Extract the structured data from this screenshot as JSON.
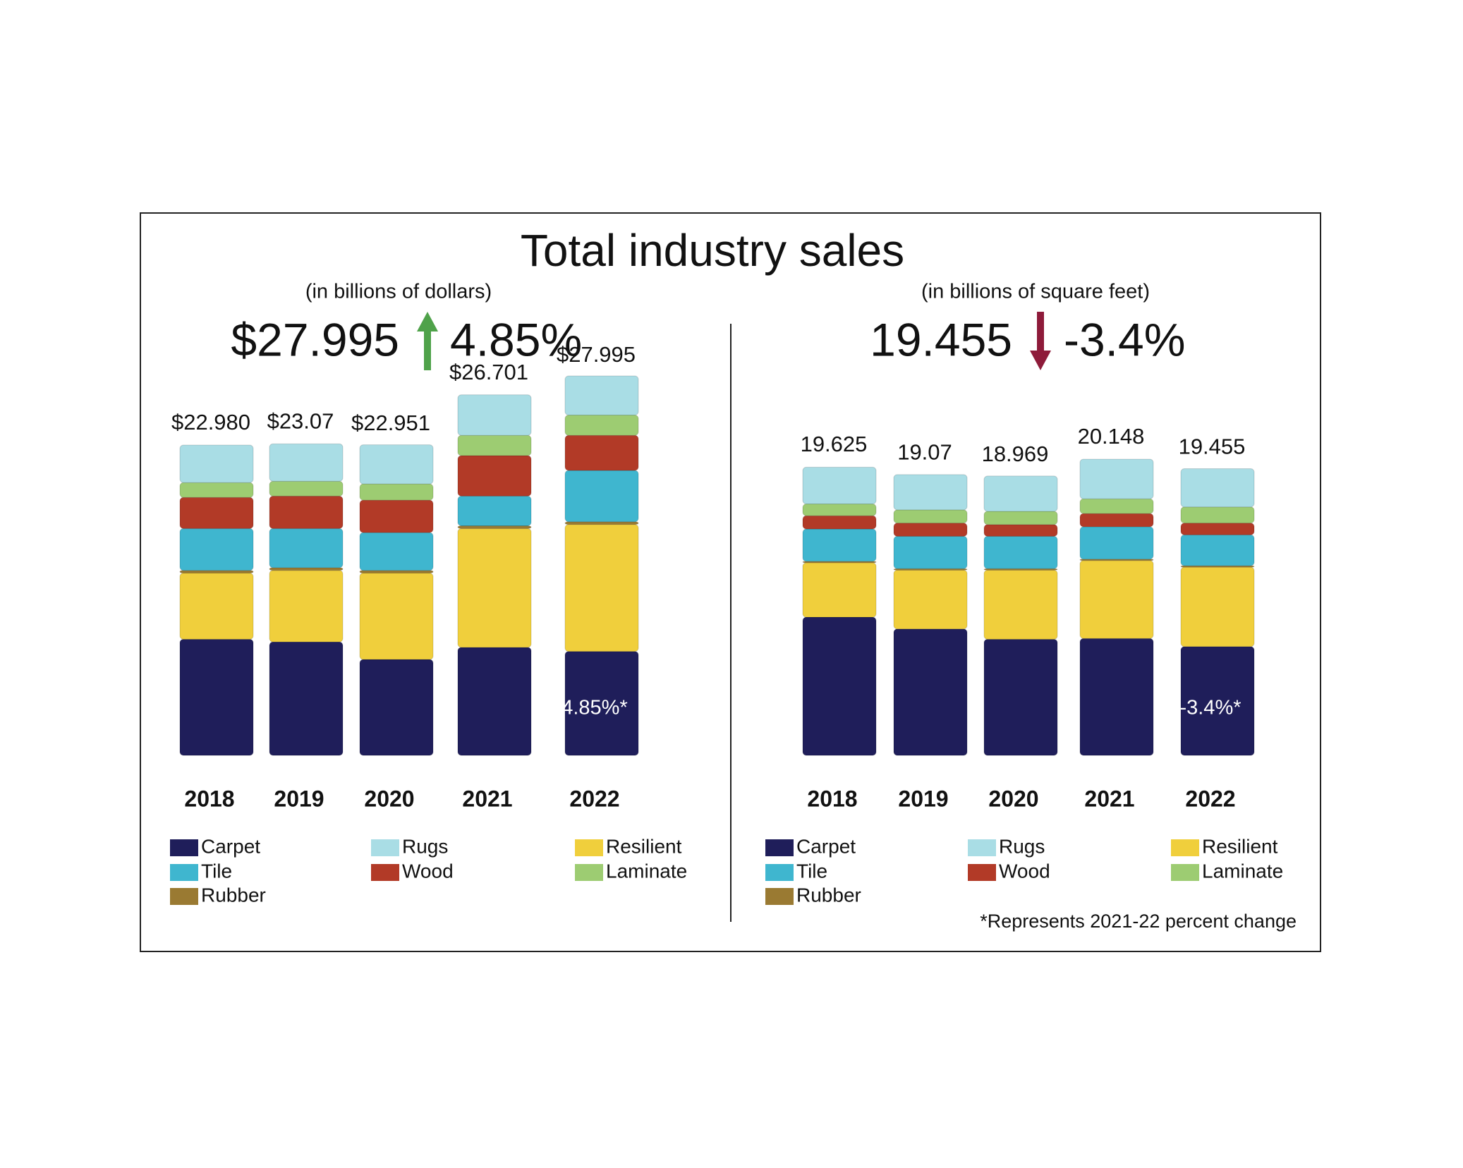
{
  "title": "Total industry sales",
  "footnote": "*Represents 2021-22 percent change",
  "chart_data": [
    {
      "type": "bar",
      "stacked": true,
      "subtitle": "(in billions of dollars)",
      "headline": "$27.995",
      "trend": "up",
      "change": "4.85%",
      "annotation": "4.85%*",
      "categories": [
        "2018",
        "2019",
        "2020",
        "2021",
        "2022"
      ],
      "totals": [
        22.98,
        23.07,
        22.951,
        26.701,
        27.995
      ],
      "total_labels": [
        "$22.980",
        "$23.07",
        "$22.951",
        "$26.701",
        "$27.995"
      ],
      "series": [
        {
          "name": "Carpet",
          "color": "#1f1e5a",
          "values": [
            8.6,
            8.4,
            7.1,
            8.0,
            7.7
          ]
        },
        {
          "name": "Resilient",
          "color": "#f0cf3c",
          "values": [
            4.9,
            5.3,
            6.4,
            8.8,
            9.4
          ]
        },
        {
          "name": "Rubber",
          "color": "#9a7a32",
          "values": [
            0.2,
            0.2,
            0.2,
            0.2,
            0.2
          ]
        },
        {
          "name": "Tile",
          "color": "#3fb6cf",
          "values": [
            3.1,
            2.9,
            2.8,
            2.2,
            3.8
          ]
        },
        {
          "name": "Wood",
          "color": "#b23a27",
          "values": [
            2.3,
            2.4,
            2.4,
            3.0,
            2.6
          ]
        },
        {
          "name": "Laminate",
          "color": "#9dcc72",
          "values": [
            1.1,
            1.1,
            1.2,
            1.5,
            1.5
          ]
        },
        {
          "name": "Rugs",
          "color": "#a9dde5",
          "values": [
            2.78,
            2.77,
            2.9,
            3.0,
            2.9
          ]
        }
      ]
    },
    {
      "type": "bar",
      "stacked": true,
      "subtitle": "(in billions of square feet)",
      "headline": "19.455",
      "trend": "down",
      "change": "-3.4%",
      "annotation": "-3.4%*",
      "categories": [
        "2018",
        "2019",
        "2020",
        "2021",
        "2022"
      ],
      "totals": [
        19.625,
        19.07,
        18.969,
        20.148,
        19.455
      ],
      "series": [
        {
          "name": "Carpet",
          "color": "#1f1e5a",
          "values": [
            9.4,
            8.6,
            7.9,
            7.95,
            7.4
          ]
        },
        {
          "name": "Resilient",
          "color": "#f0cf3c",
          "values": [
            3.7,
            4.0,
            4.7,
            5.3,
            5.4
          ]
        },
        {
          "name": "Rubber",
          "color": "#9a7a32",
          "values": [
            0.1,
            0.1,
            0.1,
            0.1,
            0.1
          ]
        },
        {
          "name": "Tile",
          "color": "#3fb6cf",
          "values": [
            2.2,
            2.2,
            2.2,
            2.2,
            2.1
          ]
        },
        {
          "name": "Wood",
          "color": "#b23a27",
          "values": [
            0.9,
            0.9,
            0.8,
            0.9,
            0.8
          ]
        },
        {
          "name": "Laminate",
          "color": "#9dcc72",
          "values": [
            0.8,
            0.9,
            0.9,
            1.0,
            1.1
          ]
        },
        {
          "name": "Rugs",
          "color": "#a9dde5",
          "values": [
            2.5,
            2.4,
            2.4,
            2.7,
            2.6
          ]
        }
      ]
    }
  ]
}
